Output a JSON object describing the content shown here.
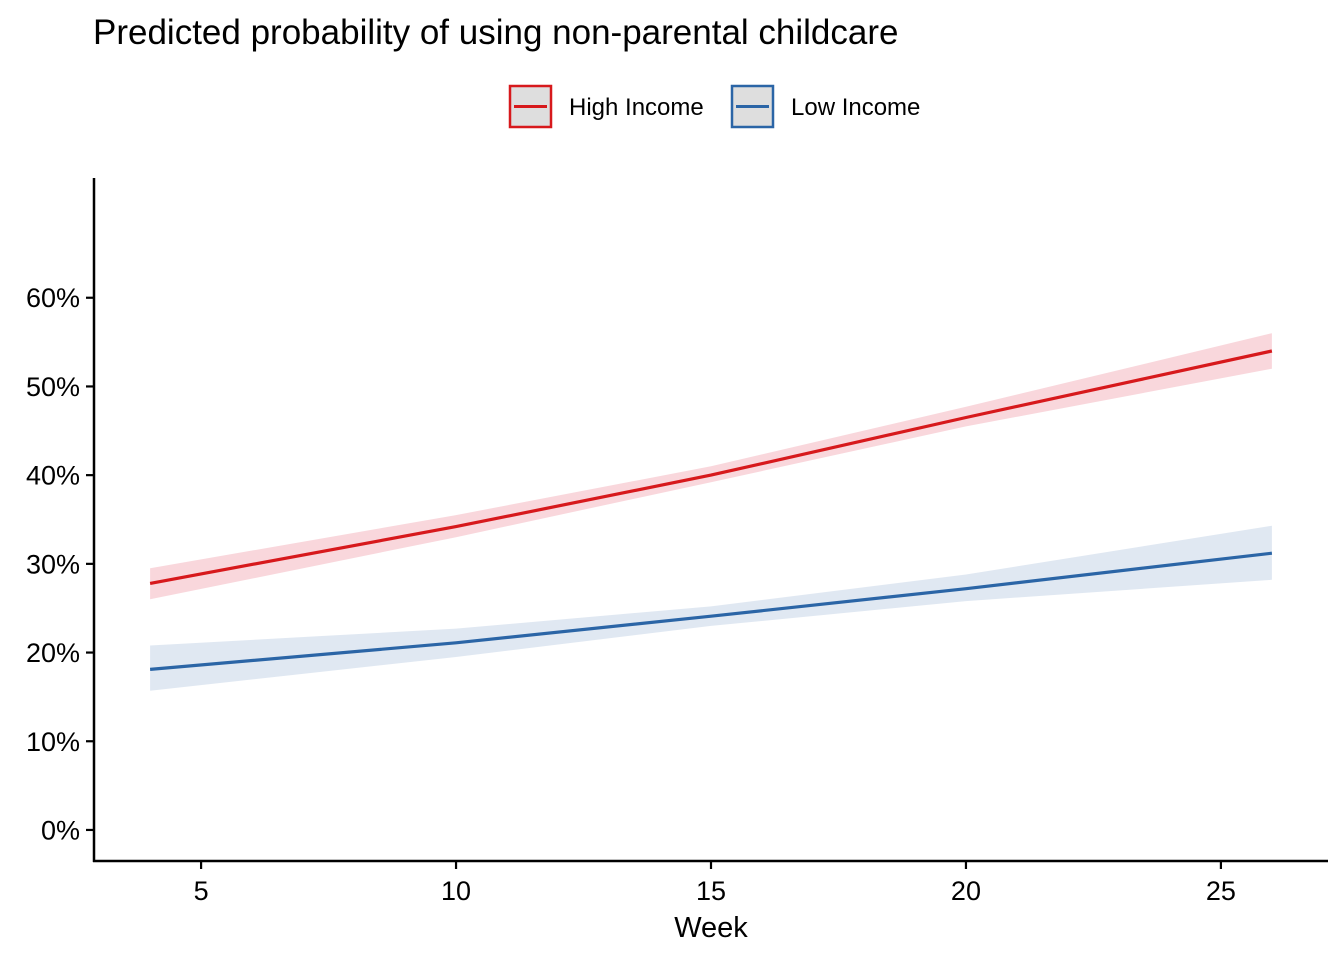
{
  "chart_data": {
    "type": "line",
    "title": "Predicted probability of using non-parental childcare",
    "xlabel": "Week",
    "ylabel": "",
    "xlim": [
      2.9,
      27.1
    ],
    "ylim": [
      -3.5,
      73.5
    ],
    "x_ticks": [
      5,
      10,
      15,
      20,
      25
    ],
    "y_ticks": [
      0,
      10,
      20,
      30,
      40,
      50,
      60
    ],
    "y_tick_labels": [
      "0%",
      "10%",
      "20%",
      "30%",
      "40%",
      "50%",
      "60%"
    ],
    "grid": false,
    "legend_position": "top",
    "series": [
      {
        "name": "High Income",
        "color": "#d7191c",
        "band_color": "#f4b6bf",
        "x": [
          4,
          10,
          15,
          20,
          26
        ],
        "values": [
          27.8,
          34.2,
          40.0,
          46.5,
          54.0
        ],
        "lower": [
          26.0,
          33.0,
          39.2,
          45.5,
          52.0
        ],
        "upper": [
          29.5,
          35.5,
          41.0,
          47.7,
          56.0
        ]
      },
      {
        "name": "Low Income",
        "color": "#2b65a6",
        "band_color": "#c6d5e8",
        "x": [
          4,
          10,
          15,
          20,
          26
        ],
        "values": [
          18.1,
          21.1,
          24.1,
          27.2,
          31.2
        ],
        "lower": [
          15.7,
          19.5,
          23.0,
          25.8,
          28.2
        ],
        "upper": [
          20.8,
          22.7,
          25.2,
          28.8,
          34.3
        ]
      }
    ]
  }
}
